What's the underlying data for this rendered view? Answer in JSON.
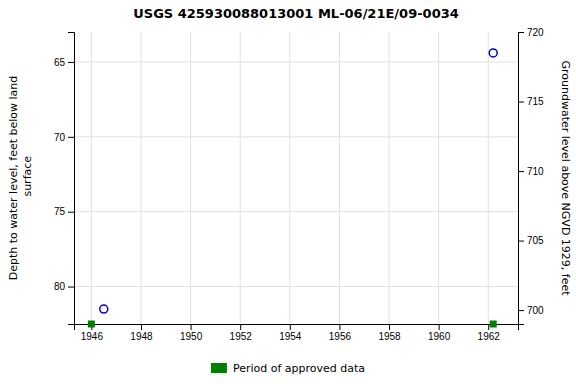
{
  "chart_data": {
    "type": "scatter",
    "title": "USGS 425930088013001 ML-06/21E/09-0034",
    "series": [
      {
        "x": [
          1946.5,
          1962.2
        ],
        "values": [
          81.5,
          64.4
        ],
        "color": "#0000cc",
        "marker": "circle"
      },
      {
        "name": "Period of approved data",
        "x": [
          1946.0,
          1962.2
        ],
        "values": [
          82.5,
          82.5
        ],
        "color": "#008000",
        "marker": "square"
      }
    ],
    "xlim": [
      1945.3,
      1963.2
    ],
    "xticks": [
      1946,
      1948,
      1950,
      1952,
      1954,
      1956,
      1958,
      1960,
      1962
    ],
    "ylim": [
      82.5,
      63.0
    ],
    "yticks": [
      65,
      70,
      75,
      80
    ],
    "y2lim": [
      699.0,
      720.0
    ],
    "y2ticks": [
      720,
      715,
      710,
      705,
      700
    ],
    "ylabel": "Depth to water level, feet below land\n surface",
    "y2label": "Groundwater level above NGVD 1929, feet",
    "grid": true,
    "legend": "bottom"
  }
}
